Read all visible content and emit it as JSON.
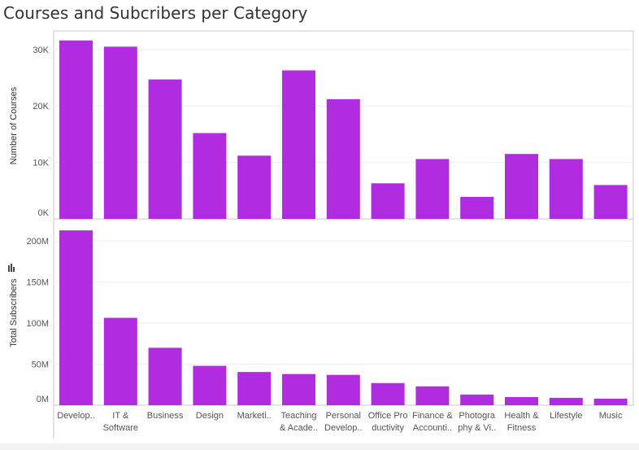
{
  "title": "Courses and Subcribers per Category",
  "colors": {
    "bar": "#b12ce0",
    "axis": "#c8c8c8",
    "grid": "#eeeeee",
    "text": "#555555"
  },
  "chart_data": [
    {
      "type": "bar",
      "title": "",
      "ylabel": "Number of Courses",
      "ylim": [
        0,
        33000
      ],
      "yticks": [
        0,
        10000,
        20000,
        30000
      ],
      "ytick_labels": [
        "0K",
        "10K",
        "20K",
        "30K"
      ],
      "categories": [
        "Develop..",
        "IT & Software",
        "Business",
        "Design",
        "Marketi..",
        "Teaching & Acade..",
        "Personal Develop..",
        "Office Pro ductivity",
        "Finance & Accounti..",
        "Photogra phy & Vi..",
        "Health & Fitness",
        "Lifestyle",
        "Music"
      ],
      "values": [
        31600,
        30500,
        24700,
        15200,
        11200,
        26300,
        21200,
        6300,
        10600,
        3900,
        11500,
        10600,
        6000
      ]
    },
    {
      "type": "bar",
      "title": "",
      "ylabel": "Total Subscribers",
      "ylim": [
        0,
        225000000
      ],
      "yticks": [
        0,
        50000000,
        100000000,
        150000000,
        200000000
      ],
      "ytick_labels": [
        "0M",
        "50M",
        "100M",
        "150M",
        "200M"
      ],
      "categories": [
        "Develop..",
        "IT & Software",
        "Business",
        "Design",
        "Marketi..",
        "Teaching & Acade..",
        "Personal Develop..",
        "Office Pro ductivity",
        "Finance & Accounti..",
        "Photogra phy & Vi..",
        "Health & Fitness",
        "Lifestyle",
        "Music"
      ],
      "category_lines": [
        [
          "Develop.."
        ],
        [
          "IT &",
          "Software"
        ],
        [
          "Business"
        ],
        [
          "Design"
        ],
        [
          "Marketi.."
        ],
        [
          "Teaching",
          "& Acade.."
        ],
        [
          "Personal",
          "Develop.."
        ],
        [
          "Office Pro",
          "ductivity"
        ],
        [
          "Finance &",
          "Accounti.."
        ],
        [
          "Photogra",
          "phy & Vi.."
        ],
        [
          "Health &",
          "Fitness"
        ],
        [
          "Lifestyle"
        ],
        [
          "Music"
        ]
      ],
      "values": [
        213000000,
        106500000,
        70000000,
        48000000,
        40500000,
        38000000,
        37000000,
        27000000,
        23000000,
        13000000,
        10000000,
        9000000,
        8000000
      ]
    }
  ]
}
